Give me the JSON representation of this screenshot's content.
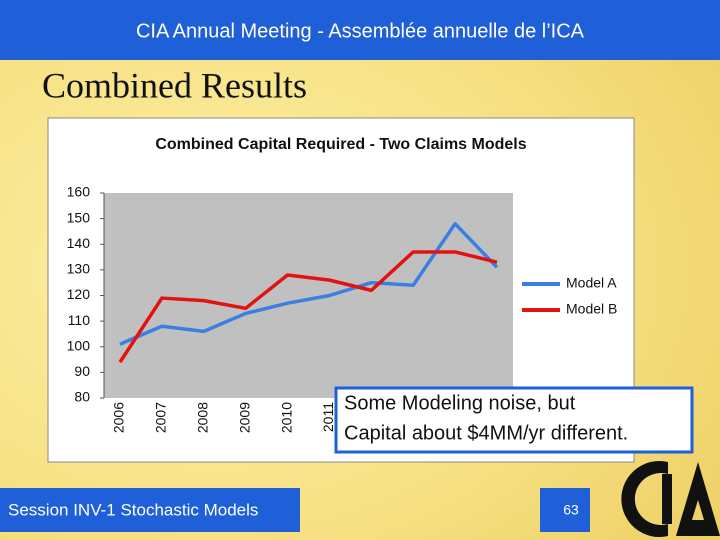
{
  "header": "CIA Annual Meeting - Assemblée annuelle de l’ICA",
  "slide_title": "Combined Results",
  "annotation": [
    "Some Modeling noise, but",
    "Capital about $4MM/yr different."
  ],
  "footer": "Session INV-1 Stochastic Models",
  "page_number": "63",
  "chart_data": {
    "type": "line",
    "title": "Combined Capital Required - Two Claims Models",
    "categories": [
      "2006",
      "2007",
      "2008",
      "2009",
      "2010",
      "2011",
      null,
      null,
      null,
      null
    ],
    "series": [
      {
        "name": "Model A",
        "color": "#3b7fe3",
        "values": [
          101,
          108,
          106,
          113,
          117,
          120,
          125,
          124,
          148,
          131
        ]
      },
      {
        "name": "Model B",
        "color": "#e31212",
        "values": [
          94,
          119,
          118,
          115,
          128,
          126,
          122,
          137,
          137,
          133
        ]
      }
    ],
    "ylim": [
      80,
      160
    ],
    "yticks": [
      80,
      90,
      100,
      110,
      120,
      130,
      140,
      150,
      160
    ],
    "grid": false,
    "legend": "right"
  }
}
